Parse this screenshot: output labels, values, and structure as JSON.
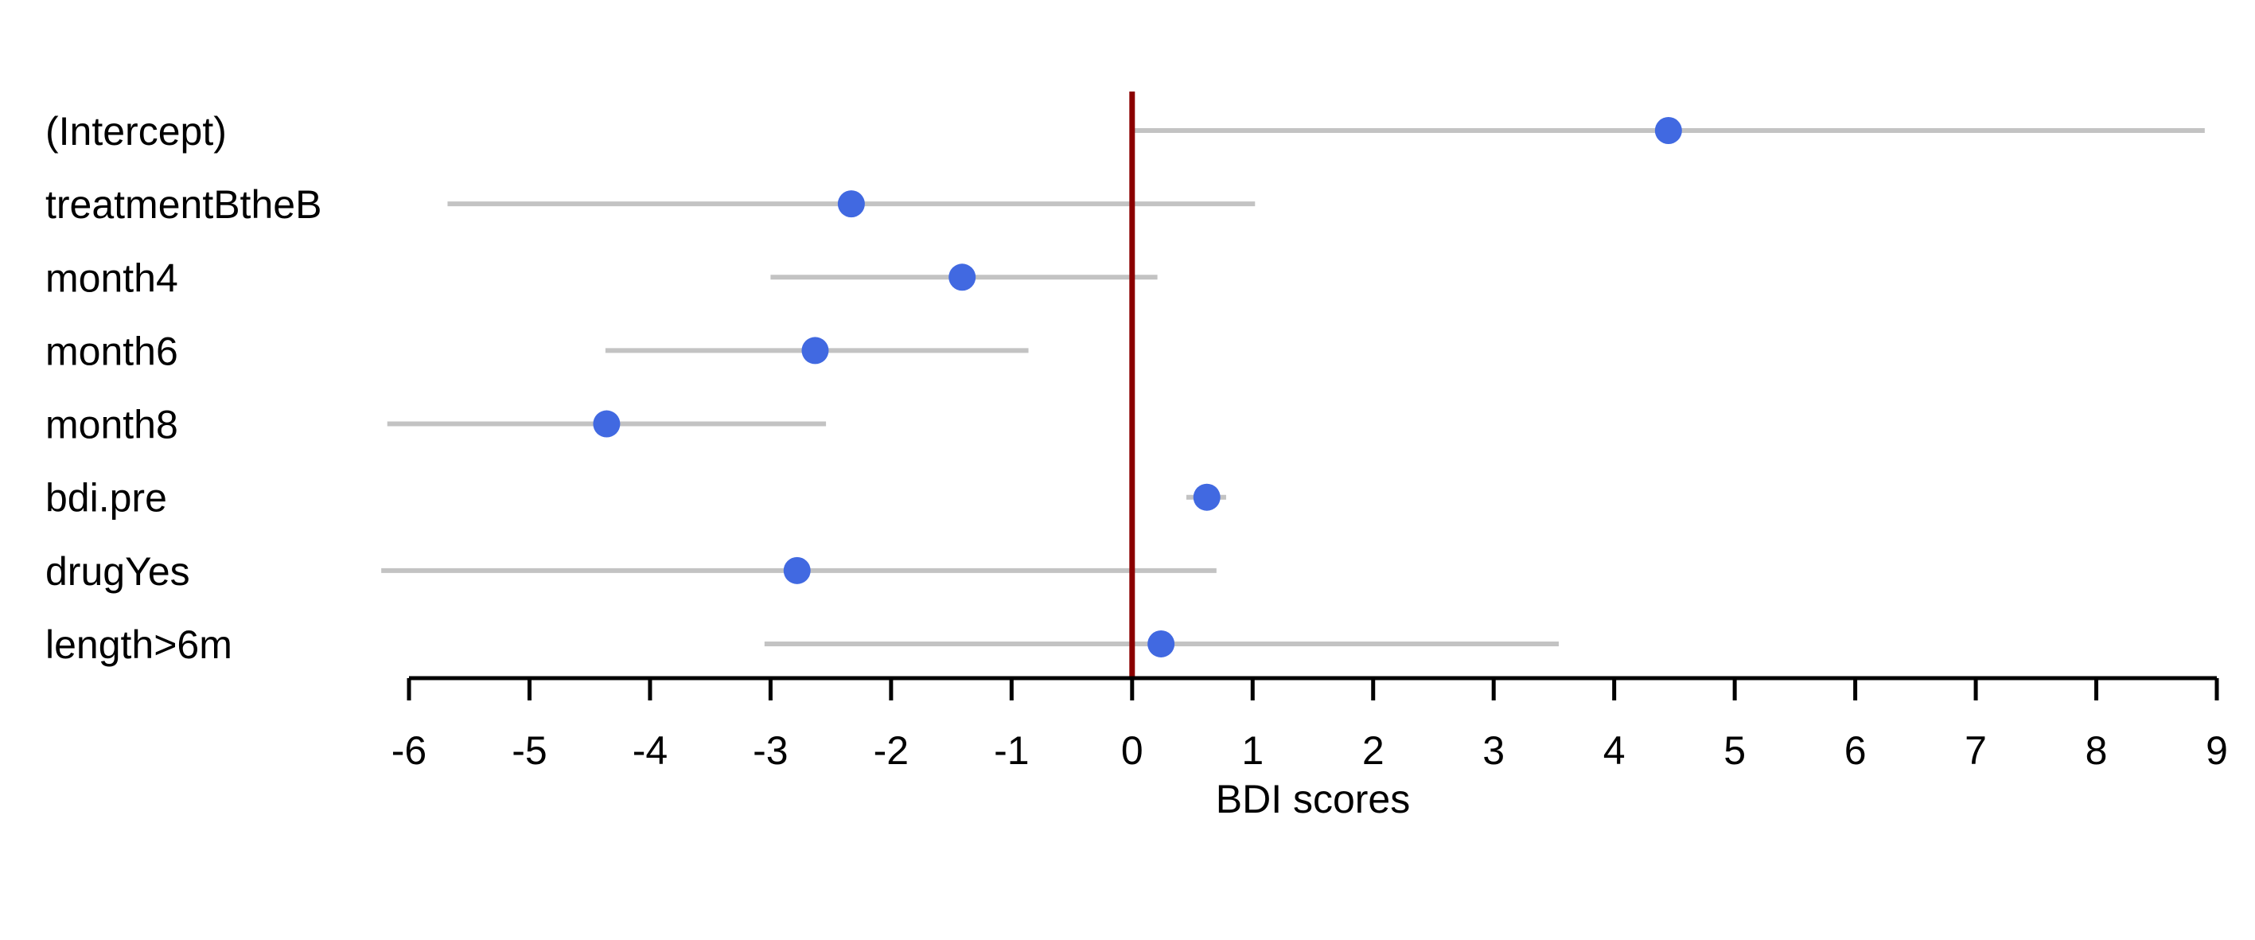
{
  "page": {
    "background": "#FFFFFF"
  },
  "chart_data": {
    "type": "scatter",
    "subtype": "coefficient-dot-plot-with-ci",
    "title": "",
    "xlabel": "BDI scores",
    "ylabel": "",
    "xlim": [
      -6,
      9
    ],
    "x_ticks": [
      -6,
      -5,
      -4,
      -3,
      -2,
      -1,
      0,
      1,
      2,
      3,
      4,
      5,
      6,
      7,
      8,
      9
    ],
    "grid": false,
    "legend": null,
    "reference_line_x": 0,
    "rows": [
      {
        "label": "(Intercept)",
        "estimate": 4.45,
        "ci_low": 0.02,
        "ci_high": 8.9
      },
      {
        "label": "treatmentBtheB",
        "estimate": -2.33,
        "ci_low": -5.68,
        "ci_high": 1.02
      },
      {
        "label": "month4",
        "estimate": -1.41,
        "ci_low": -3.0,
        "ci_high": 0.21
      },
      {
        "label": "month6",
        "estimate": -2.63,
        "ci_low": -4.37,
        "ci_high": -0.86
      },
      {
        "label": "month8",
        "estimate": -4.36,
        "ci_low": -6.18,
        "ci_high": -2.54
      },
      {
        "label": "bdi.pre",
        "estimate": 0.62,
        "ci_low": 0.45,
        "ci_high": 0.78
      },
      {
        "label": "drugYes",
        "estimate": -2.78,
        "ci_low": -6.23,
        "ci_high": 0.7
      },
      {
        "label": "length>6m",
        "estimate": 0.24,
        "ci_low": -3.05,
        "ci_high": 3.54
      }
    ],
    "colors": {
      "point": "#4169E1",
      "ci_line": "#C3C3C3",
      "reference_line": "#8B0000",
      "axis": "#000000",
      "text": "#000000"
    }
  }
}
